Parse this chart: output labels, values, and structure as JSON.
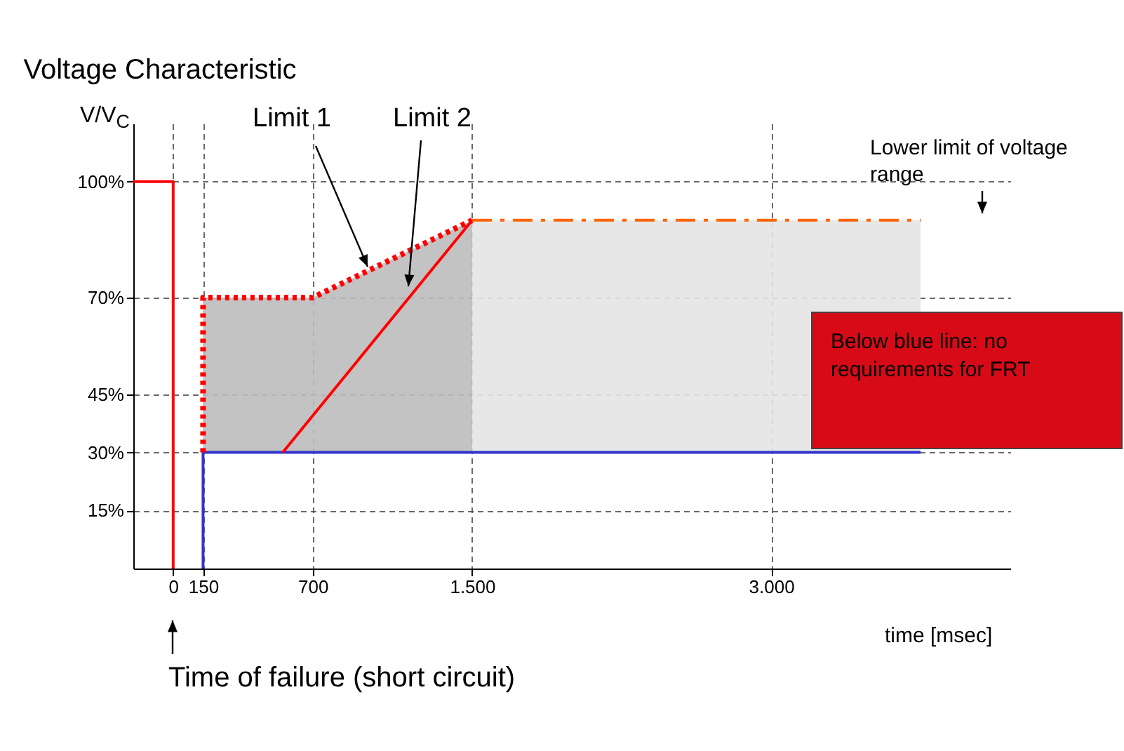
{
  "chart_data": {
    "type": "line",
    "title": "Voltage Characteristic",
    "xlabel": "time [msec]",
    "ylabel": "V/V$_{C}$",
    "xlim": [
      -200,
      4200
    ],
    "xticks": [
      0,
      150,
      700,
      {
        "value": 1500,
        "label": "1.500"
      },
      {
        "value": 3000,
        "label": "3.000"
      }
    ],
    "ylim": [
      0,
      115
    ],
    "yticks": [
      {
        "value": 15,
        "label": "15%"
      },
      {
        "value": 30,
        "label": "30%"
      },
      {
        "value": 45,
        "label": "45%"
      },
      {
        "value": 70,
        "label": "70%"
      },
      {
        "value": 100,
        "label": "100%"
      }
    ],
    "grid": true,
    "marker": "none",
    "series": [
      {
        "color": "#3333cc",
        "x": [
          150,
          150,
          3750
        ],
        "values": [
          0,
          30,
          30
        ],
        "line_style": "solid"
      },
      {
        "color": "#ff0000",
        "x": [
          -200,
          0,
          0
        ],
        "values": [
          100,
          100,
          0
        ],
        "line_style": "solid"
      },
      {
        "name": "Limit 1",
        "color": "#ff0000",
        "x": [
          150,
          150,
          700,
          1500
        ],
        "values": [
          30,
          70,
          70,
          90
        ],
        "line_style": "dotted",
        "lower": [
          null,
          30,
          30,
          30
        ],
        "upper": [
          null,
          70,
          70,
          90
        ]
      },
      {
        "name": "Limit 2",
        "color": "#ff0000",
        "x": [
          550,
          1500
        ],
        "values": [
          30,
          90
        ],
        "line_style": "solid"
      },
      {
        "name": "Lower limit of voltage range",
        "color": "#ff6600",
        "x": [
          1500,
          3750
        ],
        "values": [
          90,
          90
        ],
        "line_style": "dashed",
        "lower": [
          30,
          30
        ],
        "upper": [
          90,
          90
        ]
      }
    ],
    "annotations": [
      "Below blue line: no requirements for FRT",
      "Time of failure (short circuit)"
    ]
  }
}
